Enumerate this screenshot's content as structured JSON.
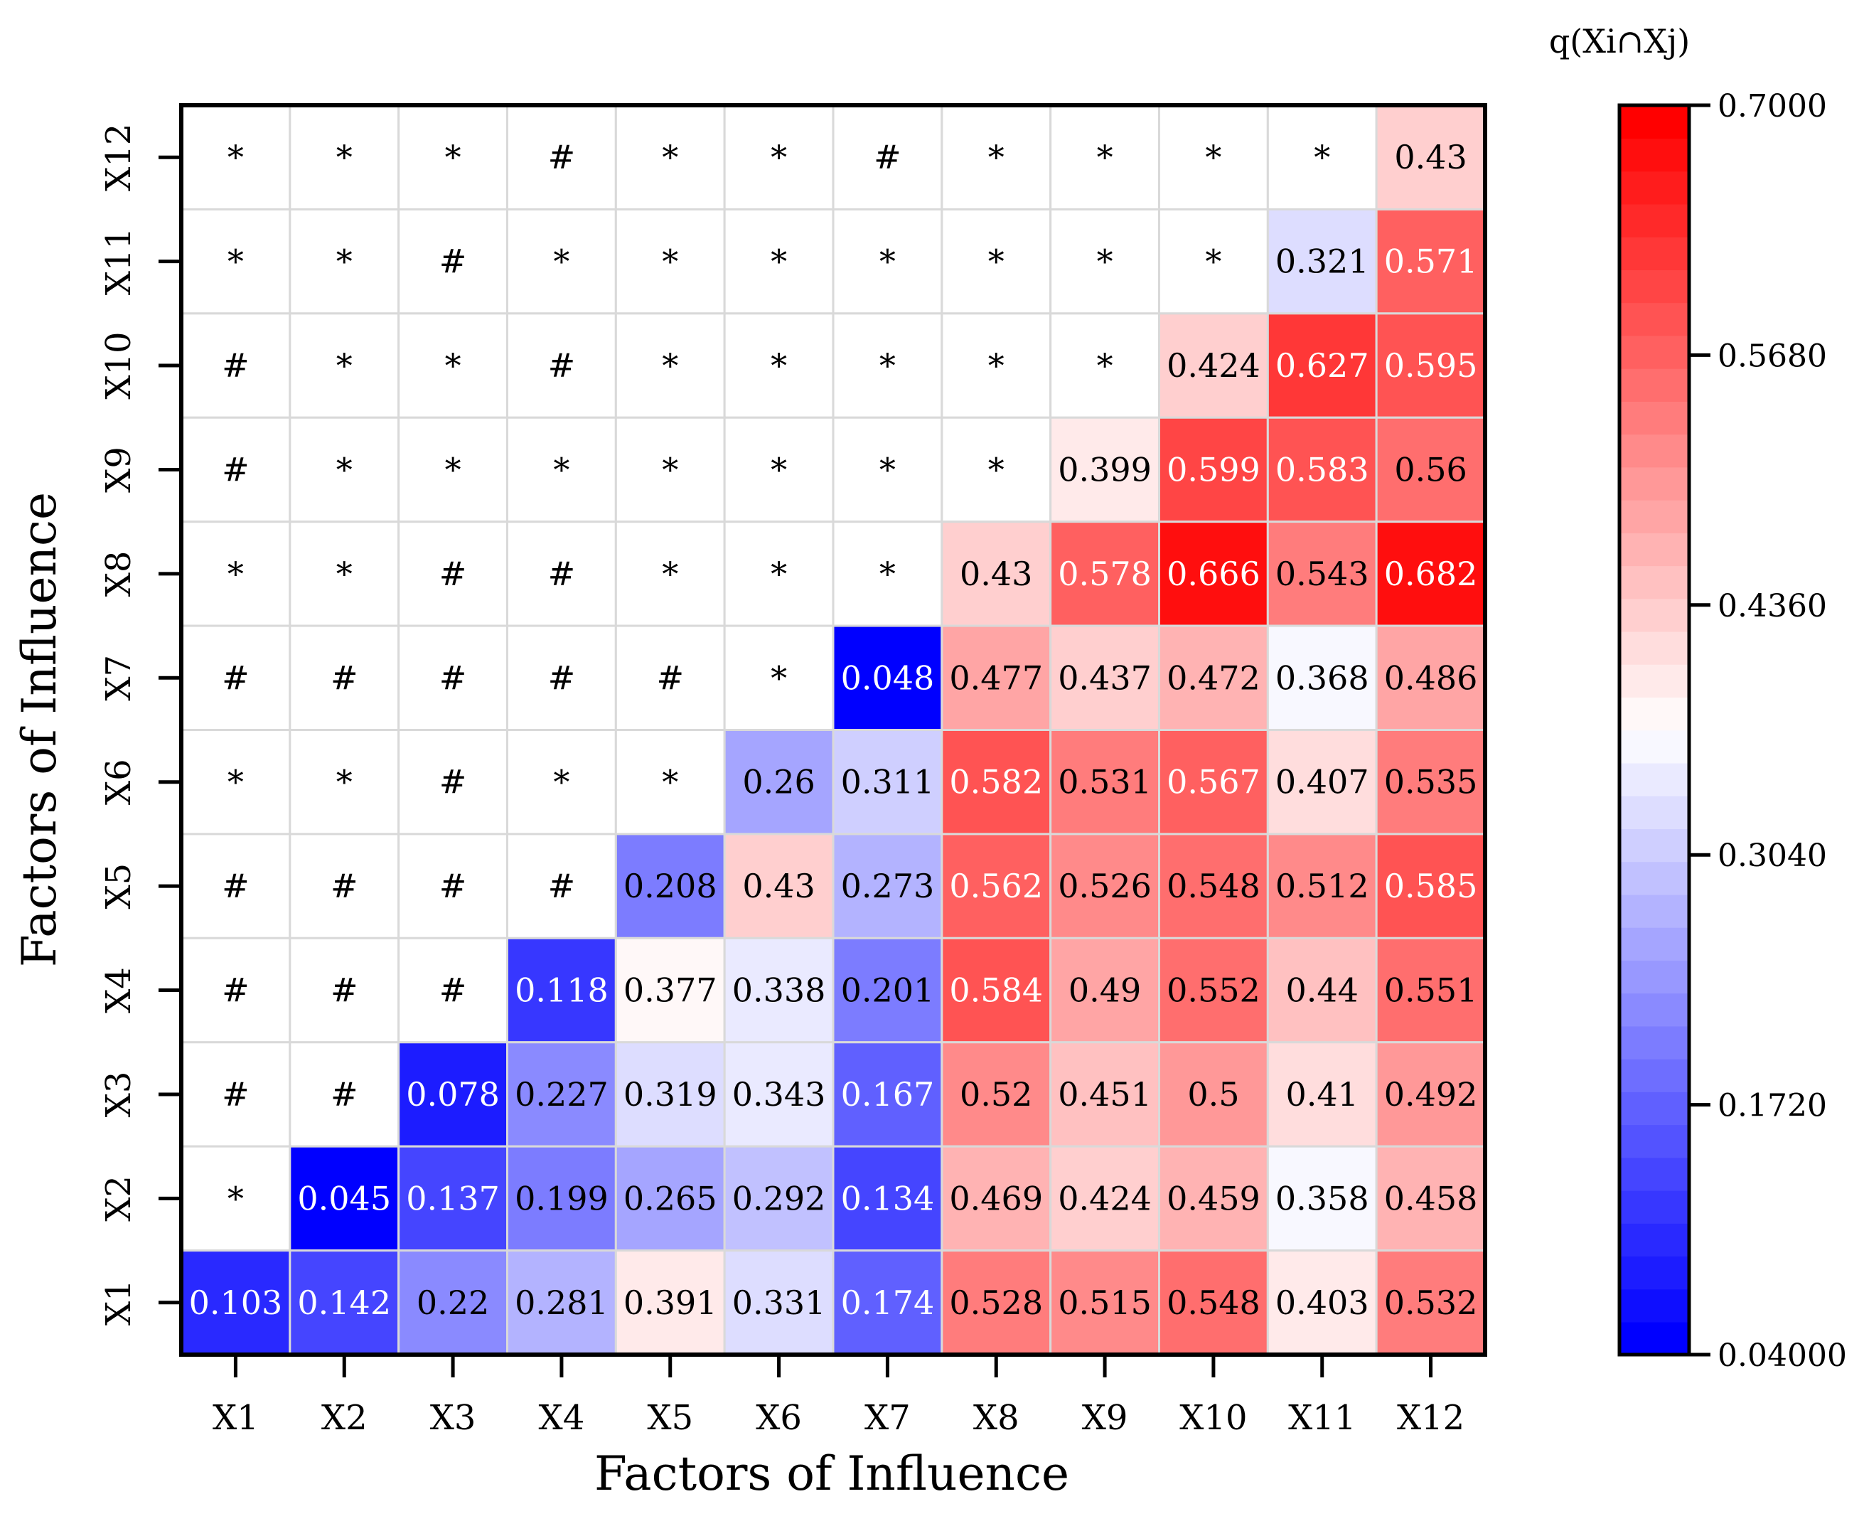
{
  "chart_data": {
    "type": "heatmap",
    "x_title": "Factors of Influence",
    "y_title": "Factors of Influence",
    "x_categories": [
      "X1",
      "X2",
      "X3",
      "X4",
      "X5",
      "X6",
      "X7",
      "X8",
      "X9",
      "X10",
      "X11",
      "X12"
    ],
    "y_categories": [
      "X1",
      "X2",
      "X3",
      "X4",
      "X5",
      "X6",
      "X7",
      "X8",
      "X9",
      "X10",
      "X11",
      "X12"
    ],
    "rows": [
      {
        "y": "X12",
        "cells": [
          "*",
          "*",
          "*",
          "#",
          "*",
          "*",
          "#",
          "*",
          "*",
          "*",
          "*",
          "0.43"
        ]
      },
      {
        "y": "X11",
        "cells": [
          "*",
          "*",
          "#",
          "*",
          "*",
          "*",
          "*",
          "*",
          "*",
          "*",
          "0.321",
          "0.571"
        ]
      },
      {
        "y": "X10",
        "cells": [
          "#",
          "*",
          "*",
          "#",
          "*",
          "*",
          "*",
          "*",
          "*",
          "0.424",
          "0.627",
          "0.595"
        ]
      },
      {
        "y": "X9",
        "cells": [
          "#",
          "*",
          "*",
          "*",
          "*",
          "*",
          "*",
          "*",
          "0.399",
          "0.599",
          "0.583",
          "0.56"
        ]
      },
      {
        "y": "X8",
        "cells": [
          "*",
          "*",
          "#",
          "#",
          "*",
          "*",
          "*",
          "0.43",
          "0.578",
          "0.666",
          "0.543",
          "0.682"
        ]
      },
      {
        "y": "X7",
        "cells": [
          "#",
          "#",
          "#",
          "#",
          "#",
          "*",
          "0.048",
          "0.477",
          "0.437",
          "0.472",
          "0.368",
          "0.486"
        ]
      },
      {
        "y": "X6",
        "cells": [
          "*",
          "*",
          "#",
          "*",
          "*",
          "0.26",
          "0.311",
          "0.582",
          "0.531",
          "0.567",
          "0.407",
          "0.535"
        ]
      },
      {
        "y": "X5",
        "cells": [
          "#",
          "#",
          "#",
          "#",
          "0.208",
          "0.43",
          "0.273",
          "0.562",
          "0.526",
          "0.548",
          "0.512",
          "0.585"
        ]
      },
      {
        "y": "X4",
        "cells": [
          "#",
          "#",
          "#",
          "0.118",
          "0.377",
          "0.338",
          "0.201",
          "0.584",
          "0.49",
          "0.552",
          "0.44",
          "0.551"
        ]
      },
      {
        "y": "X3",
        "cells": [
          "#",
          "#",
          "0.078",
          "0.227",
          "0.319",
          "0.343",
          "0.167",
          "0.52",
          "0.451",
          "0.5",
          "0.41",
          "0.492"
        ]
      },
      {
        "y": "X2",
        "cells": [
          "*",
          "0.045",
          "0.137",
          "0.199",
          "0.265",
          "0.292",
          "0.134",
          "0.469",
          "0.424",
          "0.459",
          "0.358",
          "0.458"
        ]
      },
      {
        "y": "X1",
        "cells": [
          "0.103",
          "0.142",
          "0.22",
          "0.281",
          "0.391",
          "0.331",
          "0.174",
          "0.528",
          "0.515",
          "0.548",
          "0.403",
          "0.532"
        ]
      }
    ],
    "colorbar": {
      "title": "q(Xi∩Xj)",
      "min": 0.04,
      "max": 0.7,
      "levels": 38,
      "tick_labels": [
        "0.7000",
        "0.5680",
        "0.4360",
        "0.3040",
        "0.1720",
        "0.04000"
      ],
      "tick_values": [
        0.7,
        0.568,
        0.436,
        0.304,
        0.172,
        0.04
      ],
      "color_low": "#0000ff",
      "color_mid": "#ffffff",
      "color_high": "#ff0000"
    },
    "legend_position": "right",
    "grid": true
  }
}
